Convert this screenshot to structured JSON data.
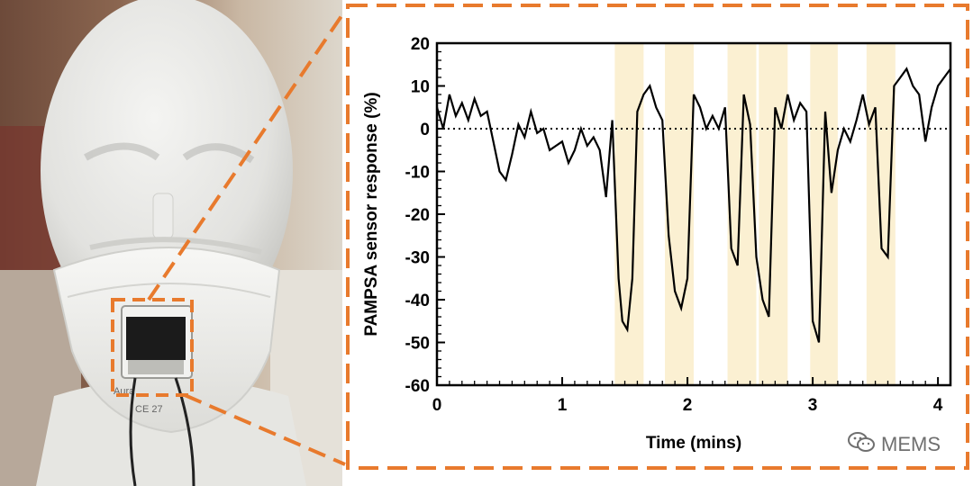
{
  "photo": {
    "description_icon": "mannequin-head-with-mask-icon",
    "sensor_text": [
      "Aura",
      "CE 27"
    ]
  },
  "watermark": {
    "icon": "wechat-icon",
    "text": "MEMS"
  },
  "colors": {
    "orange_dash": "#e87a2d",
    "highlight": "#fbf0d2",
    "line": "#000000"
  },
  "chart_data": {
    "type": "line",
    "title": "",
    "xlabel": "Time (mins)",
    "ylabel": "PAMPSA sensor response (%)",
    "xlim": [
      0,
      4.1
    ],
    "ylim": [
      -60,
      20
    ],
    "xticks": [
      0,
      1,
      2,
      3,
      4
    ],
    "yticks": [
      -60,
      -50,
      -40,
      -30,
      -20,
      -10,
      0,
      10,
      20
    ],
    "reference_line": {
      "y": 0,
      "style": "dotted"
    },
    "highlight_regions": [
      [
        1.42,
        1.65
      ],
      [
        1.82,
        2.05
      ],
      [
        2.32,
        2.55
      ],
      [
        2.57,
        2.8
      ],
      [
        2.98,
        3.2
      ],
      [
        3.43,
        3.66
      ]
    ],
    "series": [
      {
        "x": [
          0,
          0.05,
          0.1,
          0.15,
          0.2,
          0.25,
          0.3,
          0.35,
          0.4,
          0.45,
          0.5,
          0.55,
          0.6,
          0.65,
          0.7,
          0.75,
          0.8,
          0.85,
          0.9,
          0.95,
          1.0,
          1.05,
          1.1,
          1.15,
          1.2,
          1.25,
          1.3,
          1.35,
          1.4,
          1.45,
          1.48,
          1.52,
          1.56,
          1.6,
          1.65,
          1.7,
          1.75,
          1.8,
          1.85,
          1.9,
          1.95,
          2.0,
          2.05,
          2.1,
          2.15,
          2.2,
          2.25,
          2.3,
          2.35,
          2.4,
          2.45,
          2.5,
          2.55,
          2.6,
          2.65,
          2.7,
          2.75,
          2.8,
          2.85,
          2.9,
          2.95,
          3.0,
          3.05,
          3.1,
          3.15,
          3.2,
          3.25,
          3.3,
          3.35,
          3.4,
          3.45,
          3.5,
          3.55,
          3.6,
          3.65,
          3.7,
          3.75,
          3.8,
          3.85,
          3.9,
          3.95,
          4.0,
          4.05,
          4.1
        ],
        "y": [
          5,
          0,
          8,
          3,
          6,
          2,
          7,
          3,
          4,
          -3,
          -10,
          -12,
          -6,
          1,
          -2,
          4,
          -1,
          0,
          -5,
          -4,
          -3,
          -8,
          -5,
          0,
          -4,
          -2,
          -5,
          -16,
          2,
          -35,
          -45,
          -47,
          -35,
          4,
          8,
          10,
          5,
          2,
          -25,
          -38,
          -42,
          -35,
          8,
          5,
          0,
          3,
          0,
          5,
          -28,
          -32,
          8,
          1,
          -30,
          -40,
          -44,
          5,
          0,
          8,
          2,
          6,
          4,
          -45,
          -50,
          4,
          -15,
          -5,
          0,
          -3,
          2,
          8,
          1,
          5,
          -28,
          -30,
          10,
          12,
          14,
          10,
          8,
          -3,
          5,
          10,
          12,
          14
        ]
      }
    ]
  }
}
